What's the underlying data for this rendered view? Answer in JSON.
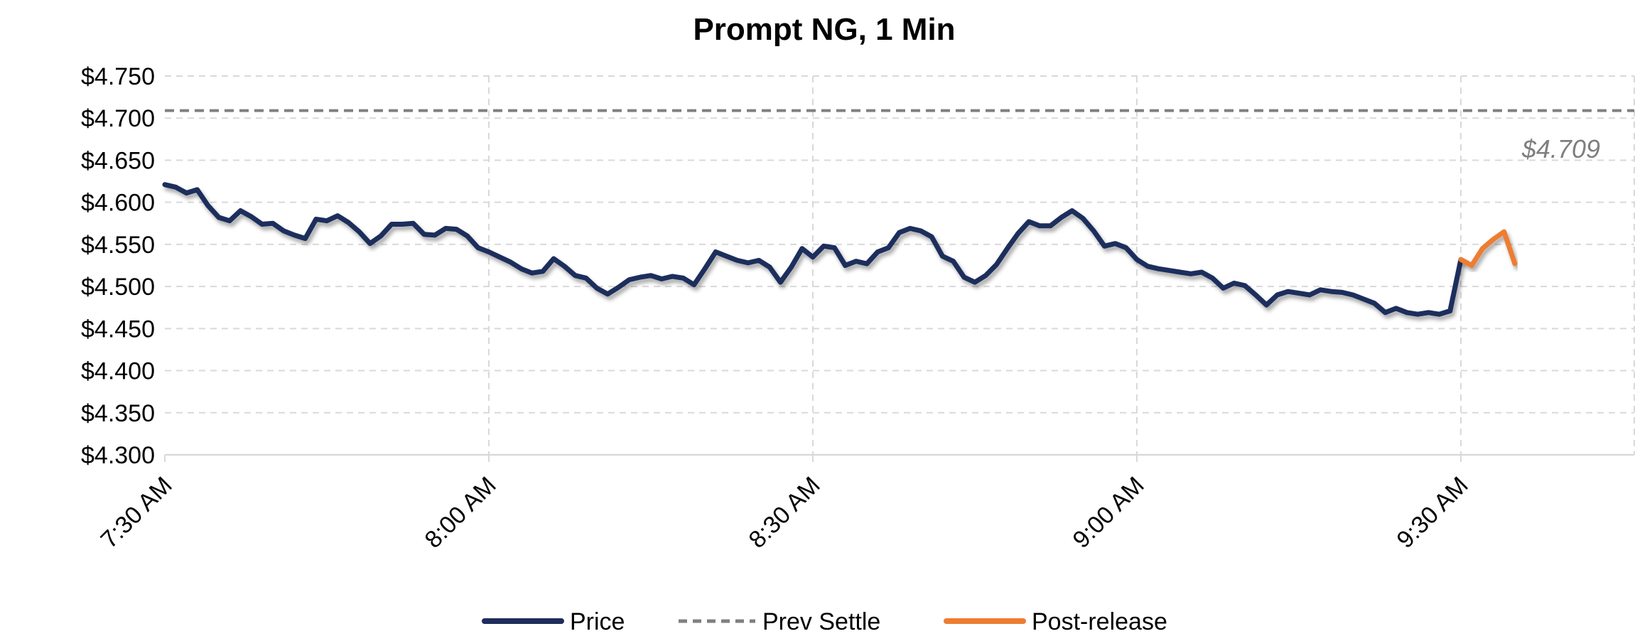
{
  "chart_data": {
    "type": "line",
    "title": "Prompt NG, 1 Min",
    "xlabel": "",
    "ylabel": "",
    "ylim": [
      4.3,
      4.75
    ],
    "ytick_labels": [
      "$4.300",
      "$4.350",
      "$4.400",
      "$4.450",
      "$4.500",
      "$4.550",
      "$4.600",
      "$4.650",
      "$4.700",
      "$4.750"
    ],
    "yticks": [
      4.3,
      4.35,
      4.4,
      4.45,
      4.5,
      4.55,
      4.6,
      4.65,
      4.7,
      4.75
    ],
    "x_start": "7:30 AM",
    "x_end": "9:45 AM",
    "xtick_labels": [
      "7:30 AM",
      "8:00 AM",
      "8:30 AM",
      "9:00 AM",
      "9:30 AM"
    ],
    "grid": true,
    "legend_position": "bottom",
    "annotation": "$4.709",
    "series": [
      {
        "name": "Price",
        "color": "#1f2d5c",
        "style": "solid",
        "x": [
          "7:30 AM",
          "7:31 AM",
          "7:32 AM",
          "7:33 AM",
          "7:34 AM",
          "7:35 AM",
          "7:36 AM",
          "7:37 AM",
          "7:38 AM",
          "7:39 AM",
          "7:40 AM",
          "7:41 AM",
          "7:42 AM",
          "7:43 AM",
          "7:44 AM",
          "7:45 AM",
          "7:46 AM",
          "7:47 AM",
          "7:48 AM",
          "7:49 AM",
          "7:50 AM",
          "7:51 AM",
          "7:52 AM",
          "7:53 AM",
          "7:54 AM",
          "7:55 AM",
          "7:56 AM",
          "7:57 AM",
          "7:58 AM",
          "7:59 AM",
          "8:00 AM",
          "8:01 AM",
          "8:02 AM",
          "8:03 AM",
          "8:04 AM",
          "8:05 AM",
          "8:06 AM",
          "8:07 AM",
          "8:08 AM",
          "8:09 AM",
          "8:10 AM",
          "8:11 AM",
          "8:12 AM",
          "8:13 AM",
          "8:14 AM",
          "8:15 AM",
          "8:16 AM",
          "8:17 AM",
          "8:18 AM",
          "8:19 AM",
          "8:20 AM",
          "8:21 AM",
          "8:22 AM",
          "8:23 AM",
          "8:24 AM",
          "8:25 AM",
          "8:26 AM",
          "8:27 AM",
          "8:28 AM",
          "8:29 AM",
          "8:30 AM",
          "8:31 AM",
          "8:32 AM",
          "8:33 AM",
          "8:34 AM",
          "8:35 AM",
          "8:36 AM",
          "8:37 AM",
          "8:38 AM",
          "8:39 AM",
          "8:40 AM",
          "8:41 AM",
          "8:42 AM",
          "8:43 AM",
          "8:44 AM",
          "8:45 AM",
          "8:46 AM",
          "8:47 AM",
          "8:48 AM",
          "8:49 AM",
          "8:50 AM",
          "8:51 AM",
          "8:52 AM",
          "8:53 AM",
          "8:54 AM",
          "8:55 AM",
          "8:56 AM",
          "8:57 AM",
          "8:58 AM",
          "8:59 AM",
          "9:00 AM",
          "9:01 AM",
          "9:02 AM",
          "9:03 AM",
          "9:04 AM",
          "9:05 AM",
          "9:06 AM",
          "9:07 AM",
          "9:08 AM",
          "9:09 AM",
          "9:10 AM",
          "9:11 AM",
          "9:12 AM",
          "9:13 AM",
          "9:14 AM",
          "9:15 AM",
          "9:16 AM",
          "9:17 AM",
          "9:18 AM",
          "9:19 AM",
          "9:20 AM",
          "9:21 AM",
          "9:22 AM",
          "9:23 AM",
          "9:24 AM",
          "9:25 AM",
          "9:26 AM",
          "9:27 AM",
          "9:28 AM",
          "9:29 AM",
          "9:30 AM"
        ],
        "values": [
          4.621,
          4.618,
          4.611,
          4.615,
          4.596,
          4.582,
          4.578,
          4.59,
          4.583,
          4.574,
          4.575,
          4.566,
          4.561,
          4.557,
          4.58,
          4.578,
          4.584,
          4.576,
          4.565,
          4.551,
          4.56,
          4.574,
          4.574,
          4.575,
          4.562,
          4.561,
          4.569,
          4.568,
          4.56,
          4.546,
          4.541,
          4.535,
          4.529,
          4.521,
          4.516,
          4.518,
          4.533,
          4.524,
          4.513,
          4.51,
          4.498,
          4.491,
          4.499,
          4.508,
          4.511,
          4.513,
          4.509,
          4.512,
          4.51,
          4.502,
          4.521,
          4.541,
          4.536,
          4.531,
          4.528,
          4.531,
          4.523,
          4.505,
          4.523,
          4.545,
          4.535,
          4.548,
          4.546,
          4.525,
          4.53,
          4.527,
          4.541,
          4.546,
          4.564,
          4.569,
          4.566,
          4.559,
          4.536,
          4.53,
          4.511,
          4.505,
          4.513,
          4.526,
          4.545,
          4.563,
          4.577,
          4.572,
          4.572,
          4.582,
          4.59,
          4.581,
          4.566,
          4.548,
          4.551,
          4.546,
          4.532,
          4.524,
          4.521,
          4.519,
          4.517,
          4.515,
          4.517,
          4.51,
          4.498,
          4.504,
          4.501,
          4.49,
          4.478,
          4.49,
          4.494,
          4.492,
          4.49,
          4.496,
          4.494,
          4.493,
          4.49,
          4.485,
          4.48,
          4.469,
          4.474,
          4.469,
          4.467,
          4.469,
          4.467,
          4.471,
          4.532
        ]
      },
      {
        "name": "Prev Settle",
        "color": "#808080",
        "style": "dashed",
        "x": [
          "7:30 AM",
          "9:45 AM"
        ],
        "values": [
          4.709,
          4.709
        ]
      },
      {
        "name": "Post-release",
        "color": "#ed7d31",
        "style": "solid",
        "x": [
          "9:30 AM",
          "9:31 AM",
          "9:32 AM",
          "9:33 AM",
          "9:34 AM",
          "9:35 AM"
        ],
        "values": [
          4.532,
          4.525,
          4.545,
          4.556,
          4.565,
          4.527
        ]
      }
    ]
  }
}
